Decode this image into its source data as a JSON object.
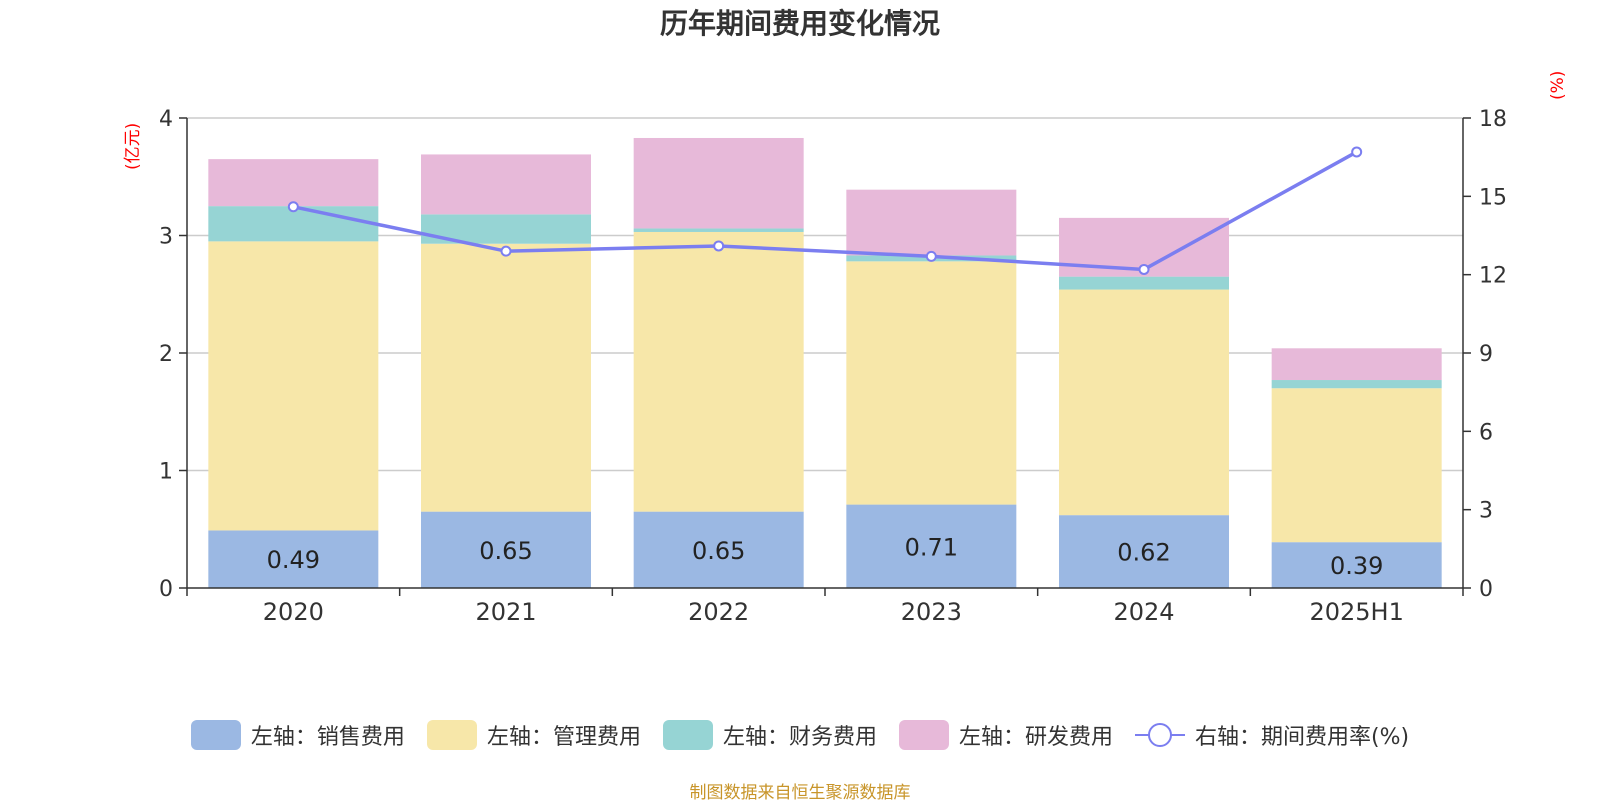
{
  "chart_data": {
    "type": "bar",
    "title": "历年期间费用变化情况",
    "categories": [
      "2020",
      "2021",
      "2022",
      "2023",
      "2024",
      "2025H1"
    ],
    "left_axis_unit": "(亿元)",
    "right_axis_unit": "(%)",
    "ylim": [
      0,
      4
    ],
    "yticks": [
      0,
      1,
      2,
      3,
      4
    ],
    "y2lim": [
      0,
      18
    ],
    "y2ticks": [
      0,
      3,
      6,
      9,
      12,
      15,
      18
    ],
    "stacked": true,
    "grid": true,
    "legend_position": "bottom",
    "series": [
      {
        "name": "左轴：销售费用",
        "type": "bar",
        "axis": "left",
        "color": "#9bb8e3",
        "values": [
          0.49,
          0.65,
          0.65,
          0.71,
          0.62,
          0.39
        ],
        "labels": [
          "0.49",
          "0.65",
          "0.65",
          "0.71",
          "0.62",
          "0.39"
        ]
      },
      {
        "name": "左轴：管理费用",
        "type": "bar",
        "axis": "left",
        "color": "#f7e7a9",
        "values": [
          2.46,
          2.28,
          2.38,
          2.07,
          1.92,
          1.31
        ]
      },
      {
        "name": "左轴：财务费用",
        "type": "bar",
        "axis": "left",
        "color": "#96d4d4",
        "values": [
          0.3,
          0.25,
          0.03,
          0.05,
          0.11,
          0.07
        ]
      },
      {
        "name": "左轴：研发费用",
        "type": "bar",
        "axis": "left",
        "color": "#e7b9d9",
        "values": [
          0.4,
          0.51,
          0.77,
          0.56,
          0.5,
          0.27
        ]
      },
      {
        "name": "右轴：期间费用率(%)",
        "type": "line",
        "axis": "right",
        "color": "#7b7ef0",
        "values": [
          14.6,
          12.9,
          13.1,
          12.7,
          12.2,
          16.7
        ]
      }
    ]
  },
  "source": "制图数据来自恒生聚源数据库"
}
